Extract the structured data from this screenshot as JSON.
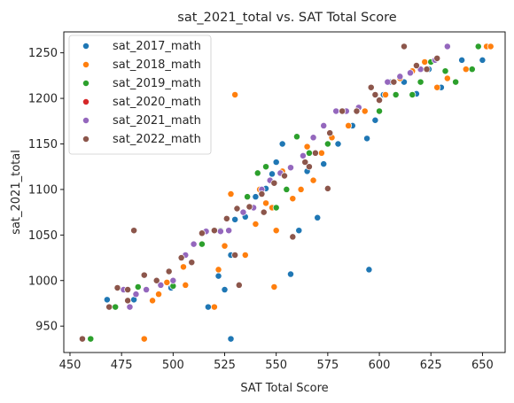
{
  "chart_data": {
    "type": "scatter",
    "title": "sat_2021_total vs. SAT Total Score",
    "xlabel": "SAT Total Score",
    "ylabel": "sat_2021_total",
    "xlim": [
      447,
      661
    ],
    "ylim": [
      921,
      1273
    ],
    "xticks": [
      450,
      475,
      500,
      525,
      550,
      575,
      600,
      625,
      650
    ],
    "yticks": [
      950,
      1000,
      1050,
      1100,
      1150,
      1200,
      1250
    ],
    "grid": false,
    "legend": "top-left",
    "series": [
      {
        "name": "sat_2017_math",
        "color": "#1f77b4",
        "points": [
          [
            528,
            936
          ],
          [
            468,
            979
          ],
          [
            481,
            979
          ],
          [
            499,
            992
          ],
          [
            517,
            971
          ],
          [
            522,
            1005
          ],
          [
            525,
            990
          ],
          [
            528,
            1028
          ],
          [
            530,
            1067
          ],
          [
            535,
            1070
          ],
          [
            540,
            1092
          ],
          [
            545,
            1101
          ],
          [
            548,
            1117
          ],
          [
            550,
            1130
          ],
          [
            553,
            1150
          ],
          [
            557,
            1007
          ],
          [
            561,
            1055
          ],
          [
            565,
            1120
          ],
          [
            570,
            1069
          ],
          [
            573,
            1128
          ],
          [
            580,
            1150
          ],
          [
            587,
            1170
          ],
          [
            594,
            1156
          ],
          [
            595,
            1012
          ],
          [
            598,
            1176
          ],
          [
            602,
            1204
          ],
          [
            605,
            1218
          ],
          [
            612,
            1218
          ],
          [
            618,
            1205
          ],
          [
            624,
            1232
          ],
          [
            630,
            1212
          ],
          [
            640,
            1242
          ],
          [
            648,
            1257
          ],
          [
            650,
            1242
          ]
        ]
      },
      {
        "name": "sat_2018_math",
        "color": "#ff7f0e",
        "points": [
          [
            486,
            936
          ],
          [
            490,
            978
          ],
          [
            493,
            985
          ],
          [
            497,
            998
          ],
          [
            505,
            1015
          ],
          [
            506,
            995
          ],
          [
            520,
            971
          ],
          [
            522,
            1012
          ],
          [
            525,
            1038
          ],
          [
            528,
            1095
          ],
          [
            530,
            1204
          ],
          [
            535,
            1028
          ],
          [
            540,
            1062
          ],
          [
            542,
            1100
          ],
          [
            545,
            1085
          ],
          [
            548,
            1080
          ],
          [
            550,
            1055
          ],
          [
            549,
            993
          ],
          [
            553,
            1120
          ],
          [
            558,
            1090
          ],
          [
            562,
            1100
          ],
          [
            565,
            1147
          ],
          [
            568,
            1110
          ],
          [
            572,
            1140
          ],
          [
            577,
            1157
          ],
          [
            582,
            1186
          ],
          [
            585,
            1170
          ],
          [
            593,
            1186
          ],
          [
            603,
            1204
          ],
          [
            610,
            1222
          ],
          [
            616,
            1230
          ],
          [
            622,
            1240
          ],
          [
            628,
            1212
          ],
          [
            633,
            1222
          ],
          [
            642,
            1232
          ],
          [
            652,
            1257
          ],
          [
            654,
            1257
          ]
        ]
      },
      {
        "name": "sat_2019_math",
        "color": "#2ca02c",
        "points": [
          [
            460,
            936
          ],
          [
            472,
            971
          ],
          [
            483,
            993
          ],
          [
            500,
            994
          ],
          [
            514,
            1040
          ],
          [
            523,
            1055
          ],
          [
            536,
            1092
          ],
          [
            541,
            1118
          ],
          [
            545,
            1125
          ],
          [
            550,
            1080
          ],
          [
            555,
            1100
          ],
          [
            560,
            1158
          ],
          [
            566,
            1140
          ],
          [
            575,
            1150
          ],
          [
            589,
            1186
          ],
          [
            600,
            1186
          ],
          [
            608,
            1204
          ],
          [
            616,
            1204
          ],
          [
            620,
            1218
          ],
          [
            625,
            1240
          ],
          [
            632,
            1230
          ],
          [
            637,
            1218
          ],
          [
            645,
            1232
          ],
          [
            648,
            1257
          ]
        ]
      },
      {
        "name": "sat_2020_math",
        "color": "#d62728",
        "points": []
      },
      {
        "name": "sat_2021_math",
        "color": "#9467bd",
        "points": [
          [
            476,
            990
          ],
          [
            479,
            971
          ],
          [
            482,
            985
          ],
          [
            487,
            990
          ],
          [
            494,
            995
          ],
          [
            500,
            1000
          ],
          [
            506,
            1028
          ],
          [
            510,
            1040
          ],
          [
            516,
            1054
          ],
          [
            523,
            1054
          ],
          [
            527,
            1055
          ],
          [
            534,
            1075
          ],
          [
            539,
            1080
          ],
          [
            543,
            1100
          ],
          [
            547,
            1110
          ],
          [
            552,
            1118
          ],
          [
            557,
            1124
          ],
          [
            563,
            1137
          ],
          [
            568,
            1157
          ],
          [
            573,
            1170
          ],
          [
            579,
            1186
          ],
          [
            584,
            1186
          ],
          [
            590,
            1190
          ],
          [
            598,
            1204
          ],
          [
            604,
            1218
          ],
          [
            610,
            1224
          ],
          [
            615,
            1228
          ],
          [
            620,
            1232
          ],
          [
            627,
            1242
          ],
          [
            633,
            1257
          ]
        ]
      },
      {
        "name": "sat_2022_math",
        "color": "#8c564b",
        "points": [
          [
            456,
            936
          ],
          [
            469,
            971
          ],
          [
            473,
            992
          ],
          [
            478,
            978
          ],
          [
            481,
            1055
          ],
          [
            486,
            1006
          ],
          [
            492,
            1000
          ],
          [
            498,
            1010
          ],
          [
            504,
            1025
          ],
          [
            509,
            1020
          ],
          [
            514,
            1052
          ],
          [
            520,
            1055
          ],
          [
            526,
            1068
          ],
          [
            531,
            1079
          ],
          [
            537,
            1081
          ],
          [
            543,
            1095
          ],
          [
            549,
            1107
          ],
          [
            554,
            1115
          ],
          [
            558,
            1048
          ],
          [
            564,
            1130
          ],
          [
            569,
            1140
          ],
          [
            576,
            1162
          ],
          [
            582,
            1186
          ],
          [
            589,
            1186
          ],
          [
            596,
            1212
          ],
          [
            600,
            1198
          ],
          [
            607,
            1218
          ],
          [
            612,
            1257
          ],
          [
            618,
            1236
          ],
          [
            623,
            1232
          ],
          [
            628,
            1244
          ],
          [
            530,
            1028
          ],
          [
            532,
            995
          ],
          [
            544,
            1075
          ],
          [
            566,
            1125
          ],
          [
            575,
            1101
          ],
          [
            598,
            1204
          ],
          [
            478,
            990
          ]
        ]
      }
    ]
  }
}
